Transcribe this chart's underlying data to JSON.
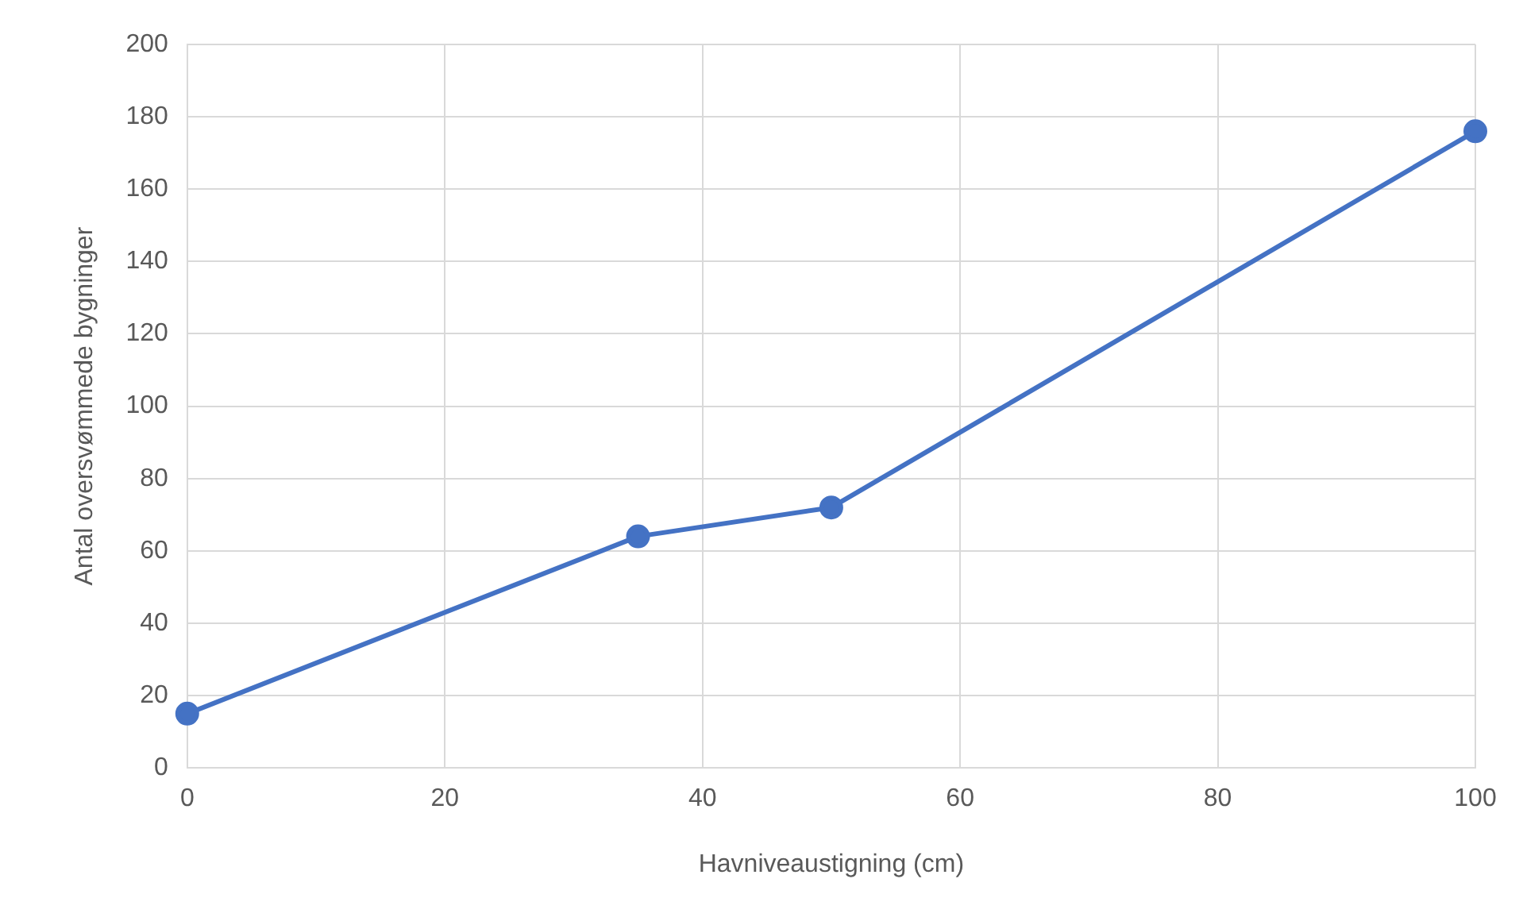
{
  "chart_data": {
    "type": "line",
    "xlabel": "Havniveaustigning (cm)",
    "ylabel": "Antal oversvømmede bygninger",
    "x": [
      0,
      35,
      50,
      100
    ],
    "series": [
      {
        "color": "#4472c4",
        "values": [
          15,
          64,
          72,
          176
        ]
      }
    ],
    "xlim": [
      0,
      100
    ],
    "xticks": [
      0,
      20,
      40,
      60,
      80,
      100
    ],
    "ylim": [
      0,
      200
    ],
    "yticks": [
      0,
      20,
      40,
      60,
      80,
      100,
      120,
      140,
      160,
      180,
      200
    ],
    "grid": true,
    "legend": false,
    "marker": "circle",
    "line_style": "solid"
  }
}
